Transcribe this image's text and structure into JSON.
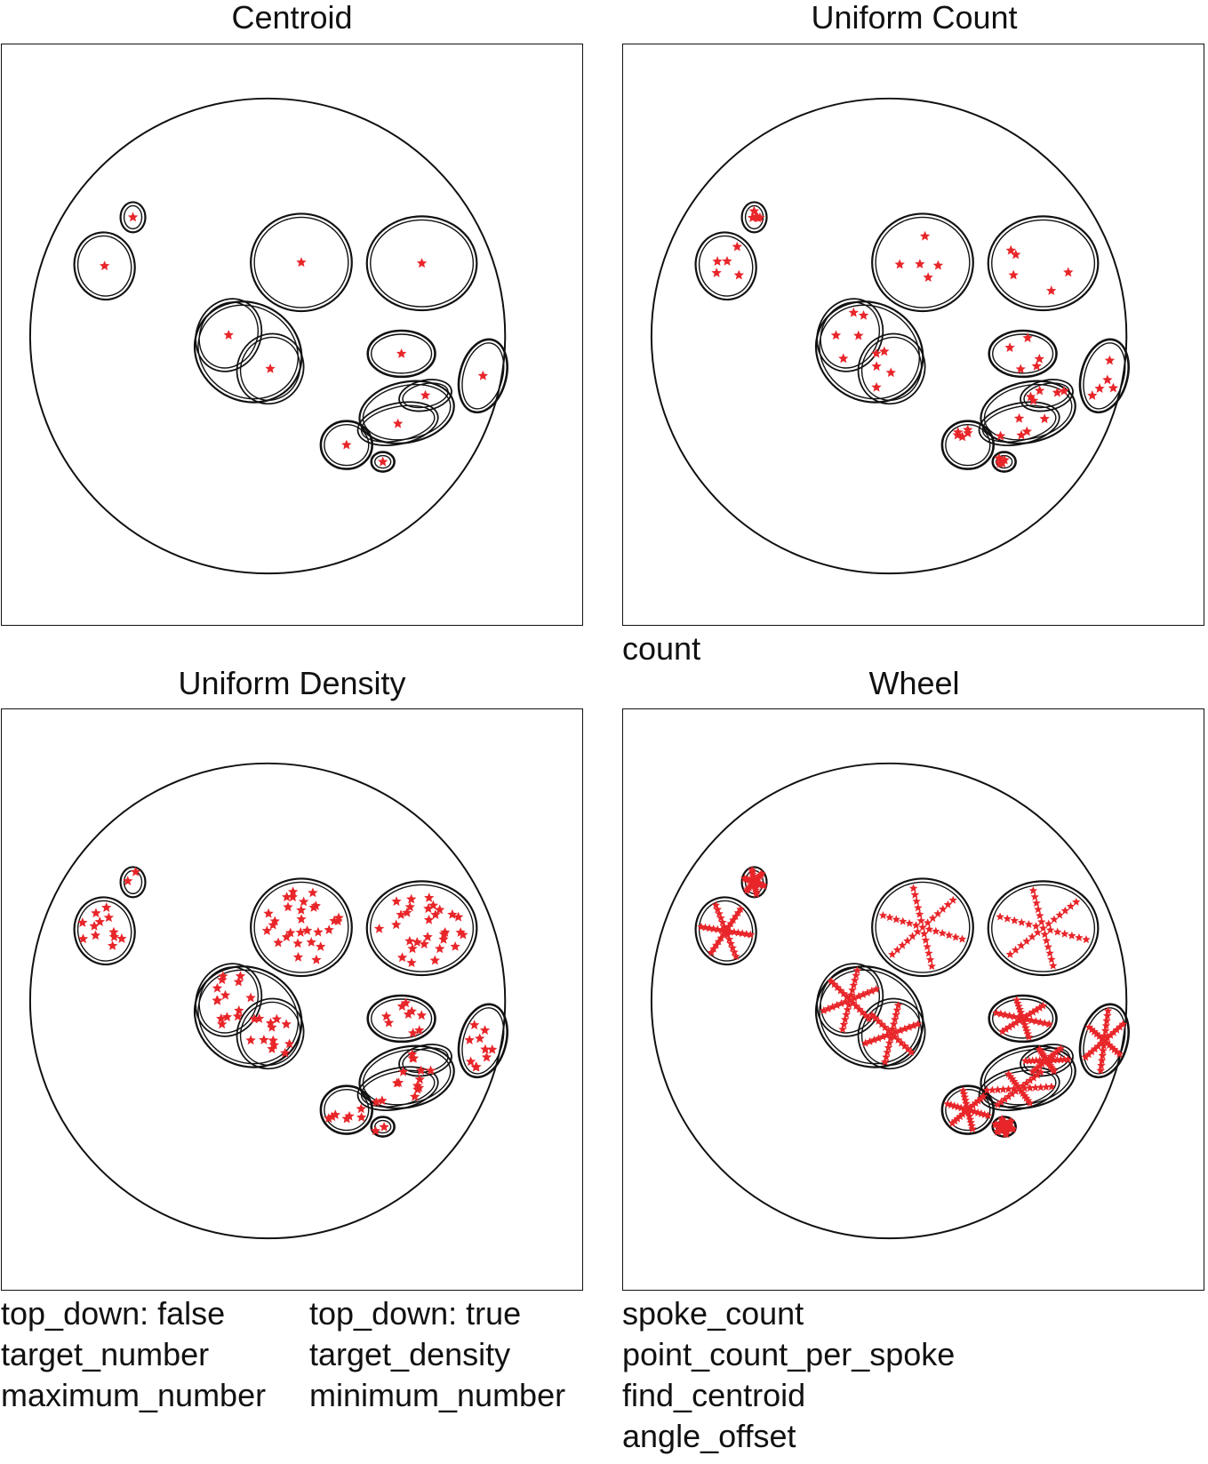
{
  "panels": [
    {
      "id": "centroid",
      "title": "Centroid",
      "mode": "centroid"
    },
    {
      "id": "uniform-count",
      "title": "Uniform Count",
      "mode": "count"
    },
    {
      "id": "uniform-density",
      "title": "Uniform Density",
      "mode": "density"
    },
    {
      "id": "wheel",
      "title": "Wheel",
      "mode": "wheel"
    }
  ],
  "labels": {
    "uniform_count": [
      "count"
    ],
    "centroid_col": [
      "top_down: false",
      "target_number",
      "maximum_number"
    ],
    "density_col": [
      "top_down: true",
      "target_density",
      "minimum_number"
    ],
    "wheel_col": [
      "spoke_count",
      "point_count_per_spoke",
      "find_centroid",
      "angle_offset"
    ]
  },
  "colors": {
    "outline": "#111111",
    "marker": "#e8262a"
  }
}
